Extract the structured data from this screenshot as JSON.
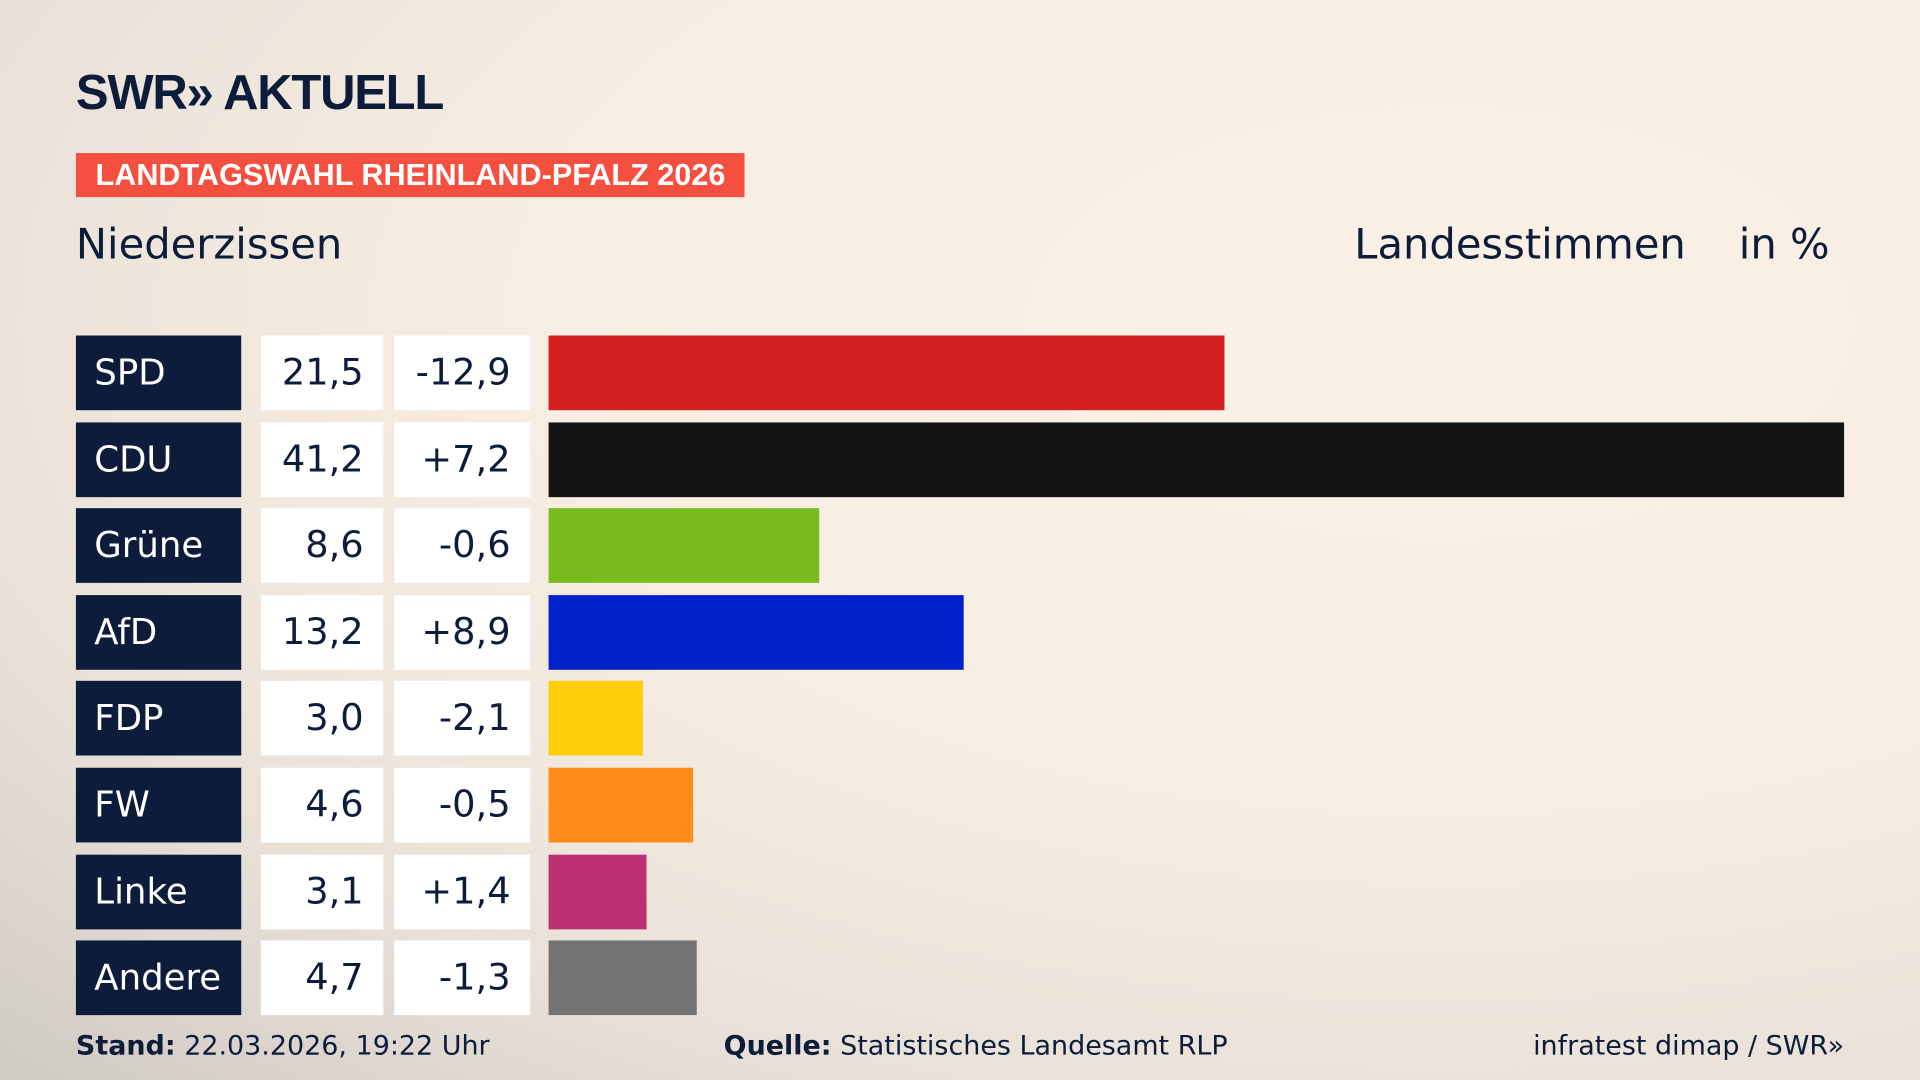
{
  "header": {
    "logo": "SWR» AKTUELL",
    "badge": "LANDTAGSWAHL RHEINLAND-PFALZ 2026",
    "place": "Niederzissen",
    "vote_type": "Landesstimmen",
    "unit": "in %"
  },
  "chart_data": {
    "type": "bar",
    "orientation": "horizontal",
    "xlim": [
      0,
      41.2
    ],
    "categories": [
      "SPD",
      "CDU",
      "Grüne",
      "AfD",
      "FDP",
      "FW",
      "Linke",
      "Andere"
    ],
    "values": [
      21.5,
      41.2,
      8.6,
      13.2,
      3.0,
      4.6,
      3.1,
      4.7
    ],
    "values_label": [
      "21,5",
      "41,2",
      "8,6",
      "13,2",
      "3,0",
      "4,6",
      "3,1",
      "4,7"
    ],
    "diff_label": [
      "-12,9",
      "+7,2",
      "-0,6",
      "+8,9",
      "-2,1",
      "-0,5",
      "+1,4",
      "-1,3"
    ],
    "colors": [
      "#d62020",
      "#141414",
      "#78bc1e",
      "#0022c8",
      "#fecd0c",
      "#ff8c19",
      "#bc3075",
      "#737373"
    ]
  },
  "footer": {
    "stand_label": "Stand:",
    "stand_value": "22.03.2026, 19:22 Uhr",
    "source_label": "Quelle:",
    "source_value": "Statistisches Landesamt RLP",
    "credit": "infratest dimap / SWR»"
  }
}
